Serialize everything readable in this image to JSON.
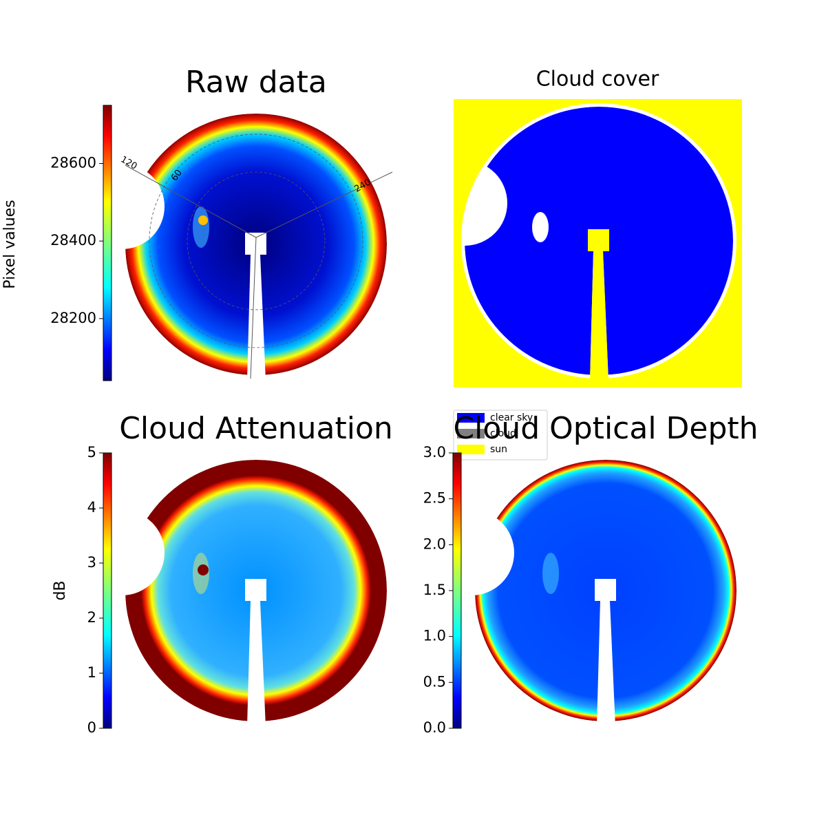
{
  "chart_data": [
    {
      "type": "image",
      "title": "Raw data",
      "colormap": "jet",
      "ylabel": "Pixel values",
      "ylim": [
        28040,
        28750
      ],
      "yticks": [
        28200,
        28400,
        28600
      ],
      "polar_labels": [
        "120",
        "60",
        "240"
      ]
    },
    {
      "type": "categorical",
      "title": "Cloud cover",
      "series": [
        {
          "name": "clear sky",
          "color": "#0000ff"
        },
        {
          "name": "cloud",
          "color": "#808080"
        },
        {
          "name": "sun",
          "color": "#ffff00"
        }
      ]
    },
    {
      "type": "image",
      "title": "Cloud Attenuation",
      "colormap": "jet",
      "ylabel": "dB",
      "ylim": [
        0,
        5
      ],
      "yticks": [
        0,
        1,
        2,
        3,
        4,
        5
      ]
    },
    {
      "type": "image",
      "title": "Cloud Optical Depth",
      "colormap": "jet",
      "ylim": [
        0,
        3
      ],
      "yticks": [
        {
          "value": 0,
          "label": "0.0"
        },
        0.5,
        {
          "value": 1,
          "label": "1.0"
        },
        1.5,
        {
          "value": 2,
          "label": "2.0"
        },
        2.5,
        {
          "value": 3,
          "label": "3.0"
        }
      ]
    }
  ]
}
